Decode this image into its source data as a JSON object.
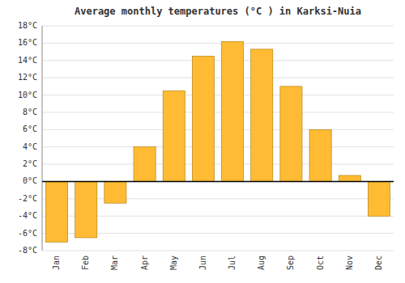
{
  "chart_data": {
    "type": "bar",
    "title": "Average monthly temperatures (°C ) in Karksi-Nuia",
    "categories": [
      "Jan",
      "Feb",
      "Mar",
      "Apr",
      "May",
      "Jun",
      "Jul",
      "Aug",
      "Sep",
      "Oct",
      "Nov",
      "Dec"
    ],
    "values": [
      -7,
      -6.5,
      -2.5,
      4,
      10.5,
      14.5,
      16.2,
      15.3,
      11,
      6,
      0.7,
      -4
    ],
    "color": "#FFBB33",
    "ylim": [
      -8,
      18
    ],
    "yticks": [
      {
        "value": -8,
        "label": "-8°C"
      },
      {
        "value": -6,
        "label": "-6°C"
      },
      {
        "value": -4,
        "label": "-4°C"
      },
      {
        "value": -2,
        "label": "-2°C"
      },
      {
        "value": 0,
        "label": "0°C"
      },
      {
        "value": 2,
        "label": "2°C"
      },
      {
        "value": 4,
        "label": "4°C"
      },
      {
        "value": 6,
        "label": "6°C"
      },
      {
        "value": 8,
        "label": "8°C"
      },
      {
        "value": 10,
        "label": "10°C"
      },
      {
        "value": 12,
        "label": "12°C"
      },
      {
        "value": 14,
        "label": "14°C"
      },
      {
        "value": 16,
        "label": "16°C"
      },
      {
        "value": 18,
        "label": "18°C"
      }
    ],
    "grid": true
  }
}
